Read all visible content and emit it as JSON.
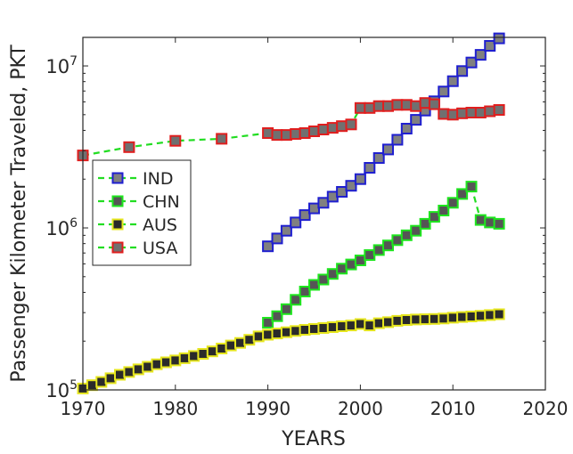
{
  "chart_data": {
    "type": "line",
    "title": "",
    "xlabel": "YEARS",
    "ylabel": "Passenger Kilometer Traveled, PKT",
    "xlim": [
      1970,
      2020
    ],
    "ylim": [
      100000,
      15000000
    ],
    "y_scale": "log",
    "grid": false,
    "legend_position": "left",
    "x_ticks": [
      1970,
      1980,
      1990,
      2000,
      2010,
      2020
    ],
    "x_tick_labels": [
      "1970",
      "1980",
      "1990",
      "2000",
      "2010",
      "2020"
    ],
    "y_ticks": [
      100000,
      1000000,
      10000000
    ],
    "y_tick_labels": [
      {
        "base": "10",
        "exp": "5"
      },
      {
        "base": "10",
        "exp": "6"
      },
      {
        "base": "10",
        "exp": "7"
      }
    ],
    "series": [
      {
        "name": "IND",
        "edge_color": "#1f1fd0",
        "fill_color": "#808080",
        "x": [
          1990,
          1991,
          1992,
          1993,
          1994,
          1995,
          1996,
          1997,
          1998,
          1999,
          2000,
          2001,
          2002,
          2003,
          2004,
          2005,
          2006,
          2007,
          2008,
          2009,
          2010,
          2011,
          2012,
          2013,
          2014,
          2015
        ],
        "y": [
          770000,
          860000,
          960000,
          1080000,
          1200000,
          1320000,
          1430000,
          1560000,
          1670000,
          1820000,
          2000000,
          2350000,
          2700000,
          3050000,
          3500000,
          4100000,
          4650000,
          5300000,
          6050000,
          6950000,
          8050000,
          9300000,
          10500000,
          11700000,
          13300000,
          14800000
        ]
      },
      {
        "name": "CHN",
        "edge_color": "#1ee61e",
        "fill_color": "#555555",
        "x": [
          1990,
          1991,
          1992,
          1993,
          1994,
          1995,
          1996,
          1997,
          1998,
          1999,
          2000,
          2001,
          2002,
          2003,
          2004,
          2005,
          2006,
          2007,
          2008,
          2009,
          2010,
          2011,
          2012,
          2013,
          2014,
          2015
        ],
        "y": [
          260000,
          285000,
          315000,
          360000,
          405000,
          445000,
          480000,
          520000,
          560000,
          595000,
          630000,
          680000,
          730000,
          780000,
          840000,
          900000,
          960000,
          1060000,
          1170000,
          1280000,
          1430000,
          1620000,
          1800000,
          1120000,
          1080000,
          1060000
        ]
      },
      {
        "name": "AUS",
        "edge_color": "#e6e61e",
        "fill_color": "#2a2a2a",
        "x": [
          1970,
          1971,
          1972,
          1973,
          1974,
          1975,
          1976,
          1977,
          1978,
          1979,
          1980,
          1981,
          1982,
          1983,
          1984,
          1985,
          1986,
          1987,
          1988,
          1989,
          1990,
          1991,
          1992,
          1993,
          1994,
          1995,
          1996,
          1997,
          1998,
          1999,
          2000,
          2001,
          2002,
          2003,
          2004,
          2005,
          2006,
          2007,
          2008,
          2009,
          2010,
          2011,
          2012,
          2013,
          2014,
          2015
        ],
        "y": [
          102000,
          107000,
          112000,
          118000,
          124000,
          129000,
          134000,
          139000,
          144000,
          148000,
          152000,
          157000,
          162000,
          167000,
          173000,
          180000,
          188000,
          195000,
          204000,
          214000,
          219000,
          223000,
          227000,
          231000,
          235000,
          238000,
          241000,
          244000,
          247000,
          250000,
          255000,
          250000,
          258000,
          262000,
          267000,
          270000,
          272000,
          273000,
          274000,
          276000,
          279000,
          282000,
          284000,
          287000,
          290000,
          293000
        ]
      },
      {
        "name": "USA",
        "edge_color": "#e01e1e",
        "fill_color": "#707070",
        "x": [
          1970,
          1975,
          1980,
          1985,
          1990,
          1991,
          1992,
          1993,
          1994,
          1995,
          1996,
          1997,
          1998,
          1999,
          2000,
          2001,
          2002,
          2003,
          2004,
          2005,
          2006,
          2007,
          2008,
          2009,
          2010,
          2011,
          2012,
          2013,
          2014,
          2015
        ],
        "y": [
          2800000,
          3150000,
          3450000,
          3550000,
          3850000,
          3750000,
          3750000,
          3800000,
          3850000,
          3950000,
          4050000,
          4150000,
          4250000,
          4350000,
          5500000,
          5500000,
          5650000,
          5650000,
          5750000,
          5750000,
          5650000,
          5900000,
          5800000,
          5050000,
          5000000,
          5100000,
          5150000,
          5150000,
          5250000,
          5350000
        ]
      }
    ]
  }
}
